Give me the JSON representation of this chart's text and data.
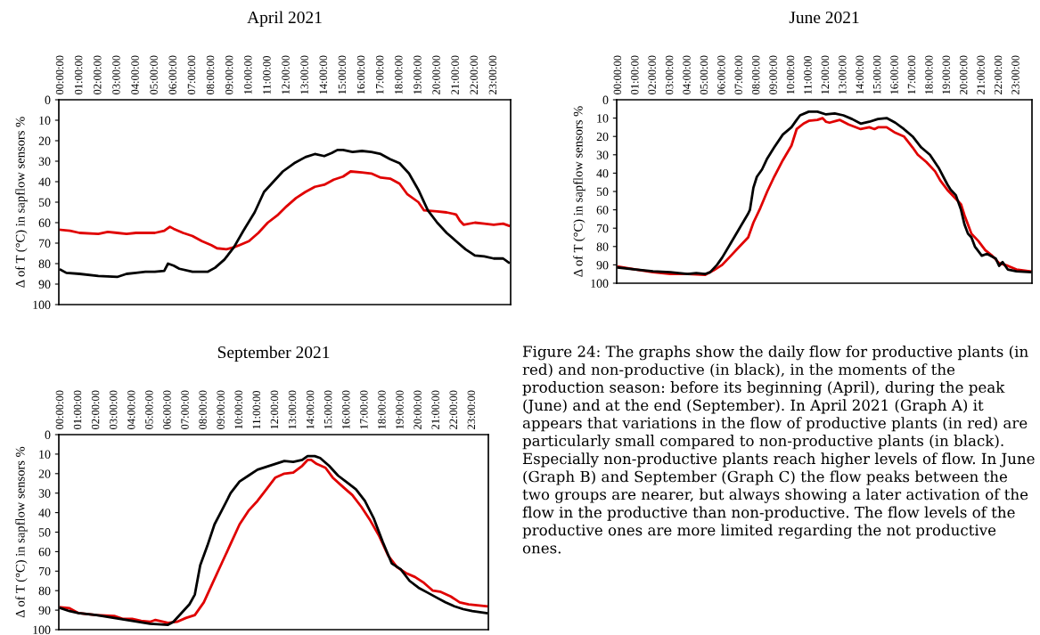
{
  "chart_data": [
    {
      "type": "line",
      "title": "April 2021",
      "ylabel": "Δ of T (°C) in sapflow sensors %",
      "ylim": [
        100,
        0
      ],
      "yticks": [
        0,
        10,
        20,
        30,
        40,
        50,
        60,
        70,
        80,
        90,
        100
      ],
      "xlim": [
        -0.1,
        23.9
      ],
      "xticks": [
        {
          "value": 0,
          "label": "00:00:00"
        },
        {
          "value": 1,
          "label": "01:00:00"
        },
        {
          "value": 2,
          "label": "02:00:00"
        },
        {
          "value": 3,
          "label": "03:00:00"
        },
        {
          "value": 4,
          "label": "04:00:00"
        },
        {
          "value": 5,
          "label": "05:00:00"
        },
        {
          "value": 6,
          "label": "06:00:00"
        },
        {
          "value": 7,
          "label": "07:00:00"
        },
        {
          "value": 8,
          "label": "08:00:00"
        },
        {
          "value": 9,
          "label": "09:00:00"
        },
        {
          "value": 10,
          "label": "10:00:00"
        },
        {
          "value": 11,
          "label": "11:00:00"
        },
        {
          "value": 12,
          "label": "12:00:00"
        },
        {
          "value": 13,
          "label": "13:00:00"
        },
        {
          "value": 14,
          "label": "14:00:00"
        },
        {
          "value": 15,
          "label": "15:00:00"
        },
        {
          "value": 16,
          "label": "16:00:00"
        },
        {
          "value": 17,
          "label": "17:00:00"
        },
        {
          "value": 18,
          "label": "18:00:00"
        },
        {
          "value": 19,
          "label": "19:00:00"
        },
        {
          "value": 20,
          "label": "20:00:00"
        },
        {
          "value": 21,
          "label": "21:00:00"
        },
        {
          "value": 22,
          "label": "22:00:00"
        },
        {
          "value": 23,
          "label": "23:00:00"
        }
      ],
      "grid": false,
      "legend": false,
      "series": [
        {
          "color": "#e00000",
          "x": [
            0,
            0.5,
            1,
            2,
            2.5,
            3,
            3.5,
            4,
            4.5,
            5,
            5.5,
            5.8,
            6,
            6.5,
            7,
            7.5,
            8,
            8.3,
            8.8,
            9.2,
            9.5,
            10,
            10.5,
            11,
            11.5,
            12,
            12.5,
            13,
            13.5,
            14,
            14.5,
            15,
            15.4,
            16,
            16.5,
            17,
            17.5,
            18,
            18.4,
            19,
            19.3,
            20,
            20.5,
            21,
            21.2,
            21.4,
            22,
            22.5,
            23,
            23.5,
            23.8
          ],
          "values": [
            63.5,
            64,
            65,
            65.5,
            64.5,
            65,
            65.5,
            65,
            65,
            65,
            64,
            62,
            63,
            65,
            66.5,
            69,
            71,
            72.5,
            73,
            72,
            71,
            69,
            65,
            60,
            56.5,
            52,
            48,
            45,
            42.5,
            41.5,
            39,
            37.5,
            35,
            35.5,
            36,
            38,
            38.5,
            41,
            46,
            50,
            54,
            54.5,
            55,
            56,
            59,
            61,
            60,
            60.5,
            61,
            60.5,
            61.5
          ]
        },
        {
          "color": "#000000",
          "x": [
            0,
            0.3,
            1,
            2,
            3,
            3.5,
            4,
            4.5,
            5,
            5.5,
            5.7,
            6,
            6.3,
            7,
            7.8,
            8.2,
            8.7,
            9.2,
            9.7,
            10.3,
            10.8,
            11.3,
            11.8,
            12.4,
            13,
            13.5,
            14,
            14.4,
            14.7,
            15,
            15.5,
            16,
            16.5,
            17,
            17.5,
            18,
            18.5,
            19,
            19.5,
            20,
            20.5,
            21,
            21.5,
            22,
            22.5,
            23,
            23.5,
            23.8
          ],
          "values": [
            83,
            84.5,
            85,
            86,
            86.5,
            85,
            84.5,
            84,
            84,
            83.5,
            80,
            81,
            82.5,
            84,
            84,
            82,
            78,
            72,
            64,
            55,
            45,
            40,
            35,
            31,
            28,
            26.5,
            27.5,
            26,
            24.5,
            24.5,
            25.5,
            25,
            25.5,
            26.5,
            29,
            31,
            36,
            44,
            54,
            60,
            65,
            69,
            73,
            76,
            76.5,
            77.5,
            77.5,
            79.5
          ]
        }
      ]
    },
    {
      "type": "line",
      "title": "June 2021",
      "ylabel": "Δ of T (°C) in sapflow sensors %",
      "ylim": [
        100,
        0
      ],
      "yticks": [
        0,
        10,
        20,
        30,
        40,
        50,
        60,
        70,
        80,
        90,
        100
      ],
      "xlim": [
        -0.1,
        23.9
      ],
      "xticks": [
        {
          "value": 0,
          "label": "00:00:00"
        },
        {
          "value": 1,
          "label": "01:00:00"
        },
        {
          "value": 2,
          "label": "02:00:00"
        },
        {
          "value": 3,
          "label": "03:00:00"
        },
        {
          "value": 4,
          "label": "04:00:00"
        },
        {
          "value": 5,
          "label": "05:00:00"
        },
        {
          "value": 6,
          "label": "06:00:00"
        },
        {
          "value": 7,
          "label": "07:00:00"
        },
        {
          "value": 8,
          "label": "08:00:00"
        },
        {
          "value": 9,
          "label": "09:00:00"
        },
        {
          "value": 10,
          "label": "10:00:00"
        },
        {
          "value": 11,
          "label": "11:00:00"
        },
        {
          "value": 12,
          "label": "12:00:00"
        },
        {
          "value": 13,
          "label": "13:00:00"
        },
        {
          "value": 14,
          "label": "14:00:00"
        },
        {
          "value": 15,
          "label": "15:00:00"
        },
        {
          "value": 16,
          "label": "16:00:00"
        },
        {
          "value": 17,
          "label": "17:00:00"
        },
        {
          "value": 18,
          "label": "18:00:00"
        },
        {
          "value": 19,
          "label": "19:00:00"
        },
        {
          "value": 20,
          "label": "20:00:00"
        },
        {
          "value": 21,
          "label": "21:00:00"
        },
        {
          "value": 22,
          "label": "22:00:00"
        },
        {
          "value": 23,
          "label": "23:00:00"
        }
      ],
      "grid": false,
      "legend": false,
      "series": [
        {
          "color": "#e00000",
          "x": [
            0,
            1,
            2,
            3,
            4,
            5,
            5.5,
            6,
            6.5,
            7,
            7.5,
            7.8,
            8.2,
            8.6,
            9,
            9.5,
            10,
            10.3,
            10.7,
            11,
            11.5,
            11.8,
            12,
            12.2,
            12.6,
            12.8,
            13.3,
            14,
            14.5,
            14.8,
            15,
            15.5,
            16,
            16.5,
            17,
            17.3,
            17.8,
            18.3,
            18.6,
            19,
            19.5,
            19.8,
            20,
            20.2,
            20.4,
            20.8,
            21.2,
            21.6,
            22,
            22.5,
            23,
            23.8
          ],
          "values": [
            91,
            92.5,
            94,
            95,
            95,
            95.5,
            93,
            90,
            85,
            80,
            75,
            67,
            59,
            50,
            42,
            33,
            25,
            16,
            13,
            11.5,
            11,
            10,
            12,
            12.5,
            11.5,
            11,
            13.5,
            16,
            15,
            16,
            15,
            15,
            18,
            20,
            26,
            30,
            34,
            39,
            44,
            49,
            54,
            57,
            63,
            68,
            73,
            77,
            82,
            85,
            89,
            90.5,
            92.5,
            93.5
          ]
        },
        {
          "color": "#000000",
          "x": [
            0,
            1,
            2,
            3,
            4,
            4.5,
            5,
            5.3,
            5.7,
            6,
            6.5,
            7,
            7.5,
            7.6,
            7.8,
            8,
            8.3,
            8.6,
            9,
            9.5,
            10,
            10.3,
            10.5,
            11,
            11.5,
            12,
            12.5,
            13,
            13.5,
            14,
            14.5,
            15,
            15.5,
            16,
            16.5,
            17,
            17.5,
            18,
            18.5,
            19,
            19.2,
            19.5,
            19.8,
            20,
            20.2,
            20.4,
            20.6,
            21,
            21.3,
            21.8,
            22,
            22.2,
            22.5,
            23,
            23.8
          ],
          "values": [
            91.5,
            92.5,
            93.5,
            94,
            95,
            94.5,
            95,
            94,
            90,
            86,
            78,
            70,
            62,
            60,
            48,
            42,
            38,
            32,
            26,
            19,
            15,
            11,
            8.5,
            6.5,
            6.5,
            8,
            7.5,
            8.5,
            10.5,
            13,
            12,
            10.5,
            10,
            12.5,
            16,
            20,
            26,
            30,
            37,
            46,
            49,
            52,
            60,
            68,
            73,
            75,
            80,
            85,
            84,
            86.5,
            90.5,
            88.5,
            92.5,
            93.5,
            94
          ]
        }
      ]
    },
    {
      "type": "line",
      "title": "September 2021",
      "ylabel": "Δ of T (°C) in sapflow sensors %",
      "ylim": [
        100,
        0
      ],
      "yticks": [
        0,
        10,
        20,
        30,
        40,
        50,
        60,
        70,
        80,
        90,
        100
      ],
      "xlim": [
        -0.1,
        23.9
      ],
      "xticks": [
        {
          "value": 0,
          "label": "00:00:00"
        },
        {
          "value": 1,
          "label": "01:00:00"
        },
        {
          "value": 2,
          "label": "02:00:00"
        },
        {
          "value": 3,
          "label": "03:00:00"
        },
        {
          "value": 4,
          "label": "04:00:00"
        },
        {
          "value": 5,
          "label": "05:00:00"
        },
        {
          "value": 6,
          "label": "06:00:00"
        },
        {
          "value": 7,
          "label": "07:00:00"
        },
        {
          "value": 8,
          "label": "08:00:00"
        },
        {
          "value": 9,
          "label": "09:00:00"
        },
        {
          "value": 10,
          "label": "10:00:00"
        },
        {
          "value": 11,
          "label": "11:00:00"
        },
        {
          "value": 12,
          "label": "12:00:00"
        },
        {
          "value": 13,
          "label": "13:00:00"
        },
        {
          "value": 14,
          "label": "14:00:00"
        },
        {
          "value": 15,
          "label": "15:00:00"
        },
        {
          "value": 16,
          "label": "16:00:00"
        },
        {
          "value": 17,
          "label": "17:00:00"
        },
        {
          "value": 18,
          "label": "18:00:00"
        },
        {
          "value": 19,
          "label": "19:00:00"
        },
        {
          "value": 20,
          "label": "20:00:00"
        },
        {
          "value": 21,
          "label": "21:00:00"
        },
        {
          "value": 22,
          "label": "22:00:00"
        },
        {
          "value": 23,
          "label": "23:00:00"
        }
      ],
      "grid": false,
      "legend": false,
      "series": [
        {
          "color": "#e00000",
          "x": [
            0,
            0.5,
            1,
            2,
            3,
            3.5,
            4,
            4.5,
            5,
            5.3,
            6,
            6.5,
            7,
            7.5,
            8,
            8.5,
            9,
            9.5,
            10,
            10.5,
            11,
            11.5,
            12,
            12.5,
            13,
            13.5,
            13.8,
            14,
            14.3,
            14.8,
            15.2,
            15.8,
            16.3,
            16.8,
            17.3,
            17.8,
            18.3,
            18.8,
            19.3,
            19.8,
            20.3,
            20.8,
            21.2,
            21.8,
            22.3,
            22.8,
            23.8
          ],
          "values": [
            88.5,
            89,
            91.5,
            92.5,
            93,
            94.5,
            94.5,
            95.5,
            96,
            95,
            96.5,
            96,
            94,
            92.5,
            86,
            76,
            66,
            56,
            46,
            39,
            34,
            28,
            22,
            20,
            19.5,
            16,
            13,
            13,
            15,
            17,
            22,
            27,
            31,
            37,
            44,
            52,
            62,
            68,
            71,
            73,
            76,
            80,
            80.5,
            83,
            86,
            87,
            88
          ]
        },
        {
          "color": "#000000",
          "x": [
            0,
            0.5,
            1,
            2,
            3,
            4,
            5,
            6,
            6.3,
            6.7,
            7.2,
            7.5,
            7.8,
            8.2,
            8.6,
            9,
            9.5,
            10,
            10.5,
            11,
            11.5,
            12,
            12.5,
            13,
            13.5,
            13.8,
            14.2,
            14.5,
            15,
            15.5,
            16,
            16.5,
            17,
            17.5,
            18,
            18.5,
            19,
            19.5,
            20,
            20.5,
            21,
            21.5,
            22,
            22.5,
            23,
            23.8
          ],
          "values": [
            89,
            90.5,
            91.5,
            92.5,
            94,
            95.5,
            97,
            97.5,
            96,
            92,
            87,
            82,
            67,
            57,
            46,
            39,
            30,
            24,
            21,
            18,
            16.5,
            15,
            13.5,
            14,
            13,
            11,
            11,
            12,
            16,
            21,
            24.5,
            28,
            34,
            43,
            55,
            66,
            69,
            75,
            78.5,
            81,
            83.5,
            86,
            88,
            89.5,
            90.5,
            91.5
          ]
        }
      ]
    },
    {
      "type": "other",
      "annotations": [
        "Figure 24: The graphs show the daily flow for productive plants (in red) and non-productive (in black), in the moments of the production season: before its beginning (April), during the peak (June) and at the end (September). In April 2021 (Graph A) it appears that variations in the flow of productive plants (in red) are particularly small compared to non-productive plants (in black). Especially non-productive plants reach higher levels of flow. In June (Graph B) and September (Graph C) the flow peaks between the two groups are nearer, but always showing a later activation of the flow in the productive than non-productive. The flow levels of the productive ones are more limited regarding the not productive ones."
      ]
    }
  ]
}
